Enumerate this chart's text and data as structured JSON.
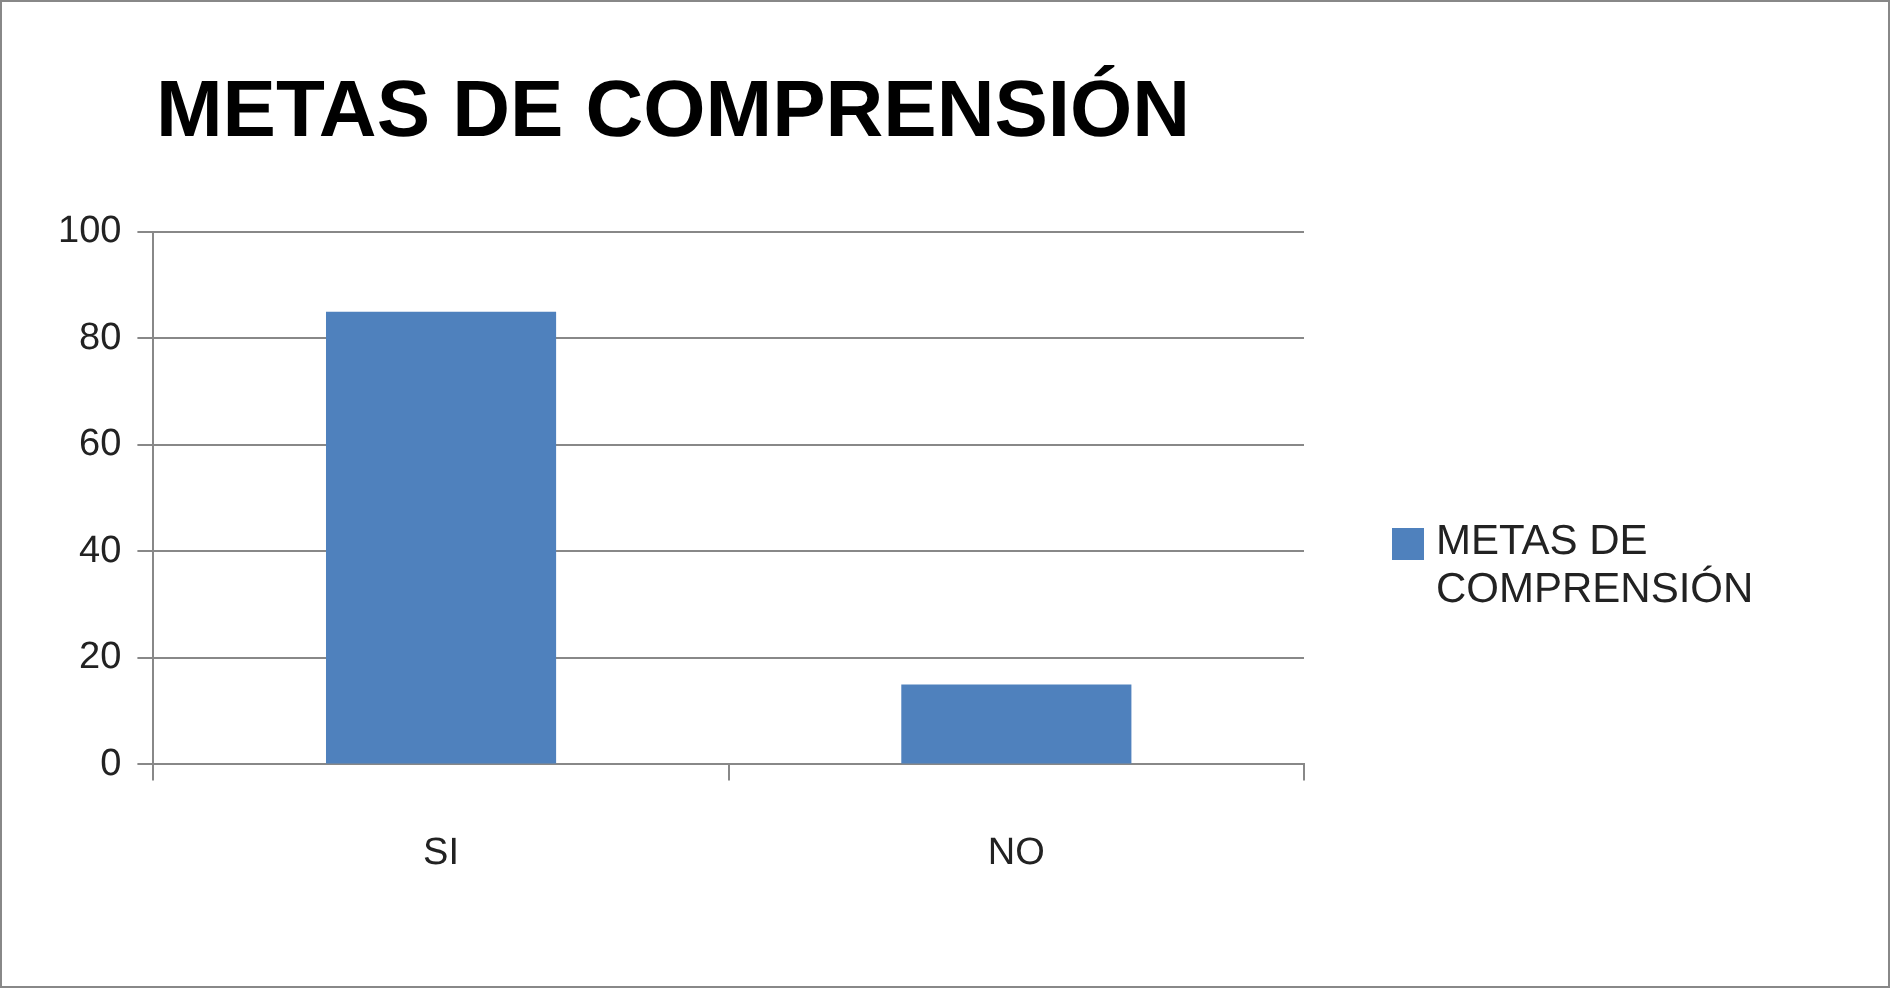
{
  "chart_data": {
    "type": "bar",
    "title": "METAS DE COMPRENSIÓN",
    "categories": [
      "SI",
      "NO"
    ],
    "series": [
      {
        "name": "METAS DE COMPRENSIÓN",
        "color": "#4f81bd",
        "values": [
          85,
          15
        ]
      }
    ],
    "ylim": [
      0,
      100
    ],
    "yticks": [
      0,
      20,
      40,
      60,
      80,
      100
    ],
    "grid": "y",
    "legend": "right"
  }
}
